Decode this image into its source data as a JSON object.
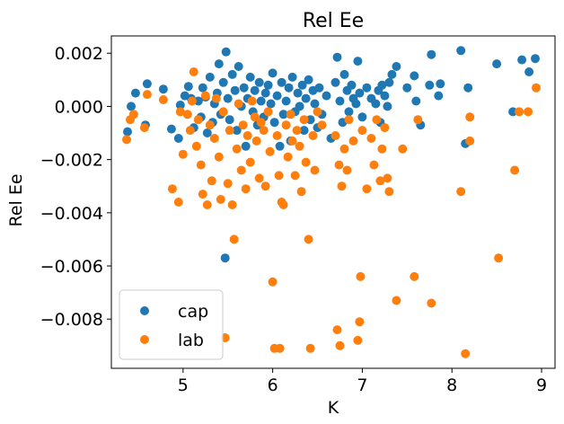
{
  "chart_data": {
    "type": "scatter",
    "title": "Rel Ee",
    "xlabel": "K",
    "ylabel": "Rel Ee",
    "xlim": [
      4.2,
      9.15
    ],
    "ylim": [
      -0.00985,
      0.00265
    ],
    "xticks": [
      5,
      6,
      7,
      8,
      9
    ],
    "xtick_labels": [
      "5",
      "6",
      "7",
      "8",
      "9"
    ],
    "yticks": [
      0.002,
      0.0,
      -0.002,
      -0.004,
      -0.006,
      -0.008
    ],
    "ytick_labels": [
      "0.002",
      "0.000",
      "−0.002",
      "−0.004",
      "−0.006",
      "−0.008"
    ],
    "legend_position": "lower-left",
    "grid": false,
    "series": [
      {
        "name": "cap",
        "color": "#1f77b4",
        "points": [
          [
            4.38,
            -0.00095
          ],
          [
            4.42,
            0.0
          ],
          [
            4.47,
            0.0005
          ],
          [
            4.58,
            -0.0007
          ],
          [
            4.6,
            0.00085
          ],
          [
            4.78,
            0.00065
          ],
          [
            4.87,
            -0.00085
          ],
          [
            4.95,
            -0.0012
          ],
          [
            4.97,
            5e-05
          ],
          [
            5.02,
            0.0004
          ],
          [
            5.06,
            0.00075
          ],
          [
            5.09,
            0.0003
          ],
          [
            5.12,
            -0.0008
          ],
          [
            5.17,
            0.0002
          ],
          [
            5.2,
            -0.0004
          ],
          [
            5.22,
            0.0007
          ],
          [
            5.25,
            0.00035
          ],
          [
            5.27,
            -0.001
          ],
          [
            5.3,
            0.0011
          ],
          [
            5.33,
            -0.0006
          ],
          [
            5.35,
            0.0001
          ],
          [
            5.38,
            0.0005
          ],
          [
            5.4,
            0.0016
          ],
          [
            5.42,
            -0.0003
          ],
          [
            5.45,
            0.0009
          ],
          [
            5.48,
            0.00205
          ],
          [
            5.5,
            0.0003
          ],
          [
            5.52,
            -0.0005
          ],
          [
            5.55,
            0.0012
          ],
          [
            5.58,
            0.0006
          ],
          [
            5.6,
            -0.0009
          ],
          [
            5.62,
            0.0015
          ],
          [
            5.65,
            0.0
          ],
          [
            5.68,
            0.0007
          ],
          [
            5.7,
            -0.0015
          ],
          [
            5.72,
            0.0003
          ],
          [
            5.75,
            0.0011
          ],
          [
            5.78,
            -0.0002
          ],
          [
            5.8,
            0.0006
          ],
          [
            5.83,
            -0.0007
          ],
          [
            5.85,
            0.0009
          ],
          [
            5.87,
            0.0002
          ],
          [
            5.9,
            -0.0004
          ],
          [
            5.92,
            0.0005
          ],
          [
            5.95,
            0.0008
          ],
          [
            5.98,
            0.0001
          ],
          [
            6.0,
            0.00125
          ],
          [
            6.02,
            -0.0006
          ],
          [
            6.05,
            0.0004
          ],
          [
            6.08,
            -0.0015
          ],
          [
            6.1,
            0.0009
          ],
          [
            6.12,
            -0.0003
          ],
          [
            6.15,
            0.0002
          ],
          [
            6.18,
            0.0007
          ],
          [
            6.2,
            -0.0013
          ],
          [
            6.22,
            0.0011
          ],
          [
            6.25,
            -0.0002
          ],
          [
            6.28,
            0.0005
          ],
          [
            6.3,
            0.0
          ],
          [
            6.33,
            0.0008
          ],
          [
            6.35,
            -0.0009
          ],
          [
            6.37,
            0.0003
          ],
          [
            6.4,
            0.001
          ],
          [
            6.42,
            -0.0005
          ],
          [
            6.45,
            0.0006
          ],
          [
            6.47,
            0.0001
          ],
          [
            6.5,
            -0.0008
          ],
          [
            6.52,
            0.0007
          ],
          [
            6.55,
            -0.0003
          ],
          [
            6.6,
            0.0004
          ],
          [
            6.65,
            -0.0012
          ],
          [
            6.7,
            0.0009
          ],
          [
            6.72,
            0.00185
          ],
          [
            6.75,
            0.0002
          ],
          [
            6.78,
            -0.0006
          ],
          [
            6.8,
            0.0012
          ],
          [
            6.83,
            0.0006
          ],
          [
            6.85,
            -0.0002
          ],
          [
            6.88,
            0.0008
          ],
          [
            6.9,
            0.0003
          ],
          [
            6.93,
            0.0001
          ],
          [
            6.95,
            0.0017
          ],
          [
            6.97,
            0.0005
          ],
          [
            7.0,
            -0.0004
          ],
          [
            7.05,
            0.0007
          ],
          [
            7.1,
            0.0003
          ],
          [
            7.15,
            0.0001
          ],
          [
            7.18,
            0.0006
          ],
          [
            7.2,
            -0.0006
          ],
          [
            7.22,
            0.0008
          ],
          [
            7.25,
            0.0004
          ],
          [
            7.28,
            0.0
          ],
          [
            7.3,
            0.0009
          ],
          [
            7.33,
            0.0012
          ],
          [
            7.38,
            0.0015
          ],
          [
            7.5,
            0.0007
          ],
          [
            7.58,
            0.00115
          ],
          [
            7.6,
            0.0002
          ],
          [
            7.65,
            -0.0007
          ],
          [
            7.75,
            0.0008
          ],
          [
            7.77,
            0.00195
          ],
          [
            7.85,
            0.0004
          ],
          [
            7.87,
            0.00085
          ],
          [
            8.1,
            0.0021
          ],
          [
            8.15,
            -0.0014
          ],
          [
            8.18,
            0.0007
          ],
          [
            8.5,
            0.0016
          ],
          [
            8.68,
            -0.0002
          ],
          [
            8.78,
            0.00175
          ],
          [
            8.86,
            0.0013
          ],
          [
            8.93,
            0.0018
          ],
          [
            5.47,
            -0.0057
          ]
        ]
      },
      {
        "name": "lab",
        "color": "#ff7f0e",
        "points": [
          [
            4.37,
            -0.00125
          ],
          [
            4.41,
            -0.0005
          ],
          [
            4.45,
            -0.0003
          ],
          [
            4.57,
            -0.0008
          ],
          [
            4.6,
            0.00045
          ],
          [
            4.78,
            0.00025
          ],
          [
            4.88,
            -0.0031
          ],
          [
            4.95,
            -0.0036
          ],
          [
            4.97,
            -0.0002
          ],
          [
            5.0,
            -0.0018
          ],
          [
            5.05,
            -0.0003
          ],
          [
            5.08,
            -0.0009
          ],
          [
            5.1,
            0.0002
          ],
          [
            5.12,
            0.0013
          ],
          [
            5.15,
            -0.0015
          ],
          [
            5.17,
            -0.0005
          ],
          [
            5.2,
            -0.0022
          ],
          [
            5.22,
            -0.0033
          ],
          [
            5.25,
            0.0004
          ],
          [
            5.27,
            -0.0037
          ],
          [
            5.3,
            -0.0007
          ],
          [
            5.32,
            -0.0028
          ],
          [
            5.35,
            -0.0012
          ],
          [
            5.37,
            0.0003
          ],
          [
            5.4,
            -0.0019
          ],
          [
            5.42,
            -0.0035
          ],
          [
            5.45,
            -0.0002
          ],
          [
            5.47,
            -0.0087
          ],
          [
            5.5,
            -0.0029
          ],
          [
            5.52,
            -0.0009
          ],
          [
            5.55,
            -0.0037
          ],
          [
            5.57,
            -0.005
          ],
          [
            5.6,
            -0.0016
          ],
          [
            5.62,
            0.0001
          ],
          [
            5.65,
            -0.0024
          ],
          [
            5.67,
            -0.0007
          ],
          [
            5.7,
            -0.0031
          ],
          [
            5.72,
            -0.0011
          ],
          [
            5.75,
            -0.0021
          ],
          [
            5.77,
            0.0002
          ],
          [
            5.8,
            -0.0004
          ],
          [
            5.82,
            -0.0013
          ],
          [
            5.85,
            -0.0027
          ],
          [
            5.87,
            -0.0006
          ],
          [
            5.9,
            -0.0009
          ],
          [
            5.92,
            -0.003
          ],
          [
            5.95,
            -0.0002
          ],
          [
            5.97,
            -0.0017
          ],
          [
            6.0,
            -0.0066
          ],
          [
            6.02,
            -0.0091
          ],
          [
            6.05,
            -0.0011
          ],
          [
            6.07,
            -0.0026
          ],
          [
            6.08,
            -0.0091
          ],
          [
            6.1,
            -0.0036
          ],
          [
            6.12,
            -0.0037
          ],
          [
            6.15,
            -0.0007
          ],
          [
            6.17,
            -0.0019
          ],
          [
            6.2,
            -0.0003
          ],
          [
            6.22,
            -0.0013
          ],
          [
            6.25,
            -0.0026
          ],
          [
            6.27,
            -0.0009
          ],
          [
            6.3,
            -0.0015
          ],
          [
            6.32,
            -0.0032
          ],
          [
            6.35,
            -0.0005
          ],
          [
            6.37,
            -0.0021
          ],
          [
            6.4,
            -0.005
          ],
          [
            6.42,
            -0.0091
          ],
          [
            6.45,
            -0.0011
          ],
          [
            6.47,
            -0.0024
          ],
          [
            6.5,
            -0.0002
          ],
          [
            6.55,
            -0.0007
          ],
          [
            6.7,
            -0.0011
          ],
          [
            6.72,
            -0.0084
          ],
          [
            6.74,
            -0.0022
          ],
          [
            6.75,
            -0.009
          ],
          [
            6.77,
            -0.003
          ],
          [
            6.8,
            -0.0016
          ],
          [
            6.83,
            -0.0024
          ],
          [
            6.85,
            -0.0005
          ],
          [
            6.9,
            -0.0013
          ],
          [
            6.95,
            -0.0088
          ],
          [
            6.97,
            -0.0081
          ],
          [
            6.98,
            -0.0064
          ],
          [
            7.0,
            -0.0009
          ],
          [
            7.05,
            -0.0031
          ],
          [
            7.1,
            -0.0012
          ],
          [
            7.13,
            -0.0022
          ],
          [
            7.16,
            -0.0005
          ],
          [
            7.2,
            -0.0028
          ],
          [
            7.22,
            -0.0016
          ],
          [
            7.25,
            -0.0008
          ],
          [
            7.28,
            -0.0027
          ],
          [
            7.3,
            -0.0032
          ],
          [
            7.38,
            -0.0073
          ],
          [
            7.45,
            -0.0016
          ],
          [
            7.58,
            -0.0064
          ],
          [
            7.62,
            -0.0005
          ],
          [
            7.77,
            -0.0074
          ],
          [
            8.1,
            -0.0032
          ],
          [
            8.15,
            -0.0093
          ],
          [
            8.2,
            -0.0013
          ],
          [
            8.52,
            -0.0057
          ],
          [
            8.7,
            -0.0024
          ],
          [
            8.75,
            -0.0002
          ],
          [
            8.85,
            -0.0002
          ],
          [
            8.94,
            0.0007
          ],
          [
            8.2,
            -0.0004
          ]
        ]
      }
    ]
  }
}
